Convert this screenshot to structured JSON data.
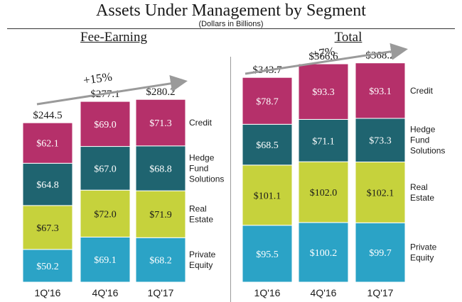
{
  "title": "Assets Under Management by Segment",
  "subtitle": "(Dollars in Billions)",
  "colors": {
    "Credit": "#b5306a",
    "Hedge Fund Solutions": "#1f6470",
    "Real Estate": "#c6d23c",
    "Private Equity": "#2ba3c6",
    "arrow": "#9a9a9a"
  },
  "chart_data": [
    {
      "type": "bar",
      "stacked": true,
      "title": "Fee-Earning",
      "categories": [
        "1Q'16",
        "4Q'16",
        "1Q'17"
      ],
      "totals": [
        "$244.5",
        "$277.1",
        "$280.2"
      ],
      "growth_label": "+15%",
      "ylim": [
        0,
        300
      ],
      "series": [
        {
          "name": "Private Equity",
          "legend": [
            "Private",
            "Equity"
          ],
          "values": [
            50.2,
            69.1,
            68.2
          ],
          "labels": [
            "$50.2",
            "$69.1",
            "$68.2"
          ]
        },
        {
          "name": "Real Estate",
          "legend": [
            "Real",
            "Estate"
          ],
          "values": [
            67.3,
            72.0,
            71.9
          ],
          "labels": [
            "$67.3",
            "$72.0",
            "$71.9"
          ]
        },
        {
          "name": "Hedge Fund Solutions",
          "legend": [
            "Hedge",
            "Fund",
            "Solutions"
          ],
          "values": [
            64.8,
            67.0,
            68.8
          ],
          "labels": [
            "$64.8",
            "$67.0",
            "$68.8"
          ]
        },
        {
          "name": "Credit",
          "legend": [
            "Credit"
          ],
          "values": [
            62.1,
            69.0,
            71.3
          ],
          "labels": [
            "$62.1",
            "$69.0",
            "$71.3"
          ]
        }
      ]
    },
    {
      "type": "bar",
      "stacked": true,
      "title": "Total",
      "categories": [
        "1Q'16",
        "4Q'16",
        "1Q'17"
      ],
      "totals": [
        "$343.7",
        "$366.6",
        "$368.2"
      ],
      "growth_label": "+7%",
      "ylim": [
        0,
        380
      ],
      "series": [
        {
          "name": "Private Equity",
          "legend": [
            "Private",
            "Equity"
          ],
          "values": [
            95.5,
            100.2,
            99.7
          ],
          "labels": [
            "$95.5",
            "$100.2",
            "$99.7"
          ]
        },
        {
          "name": "Real Estate",
          "legend": [
            "Real",
            "Estate"
          ],
          "values": [
            101.1,
            102.0,
            102.1
          ],
          "labels": [
            "$101.1",
            "$102.0",
            "$102.1"
          ]
        },
        {
          "name": "Hedge Fund Solutions",
          "legend": [
            "Hedge",
            "Fund",
            "Solutions"
          ],
          "values": [
            68.5,
            71.1,
            73.3
          ],
          "labels": [
            "$68.5",
            "$71.1",
            "$73.3"
          ]
        },
        {
          "name": "Credit",
          "legend": [
            "Credit"
          ],
          "values": [
            78.7,
            93.3,
            93.1
          ],
          "labels": [
            "$78.7",
            "$93.3",
            "$93.1"
          ]
        }
      ]
    }
  ]
}
